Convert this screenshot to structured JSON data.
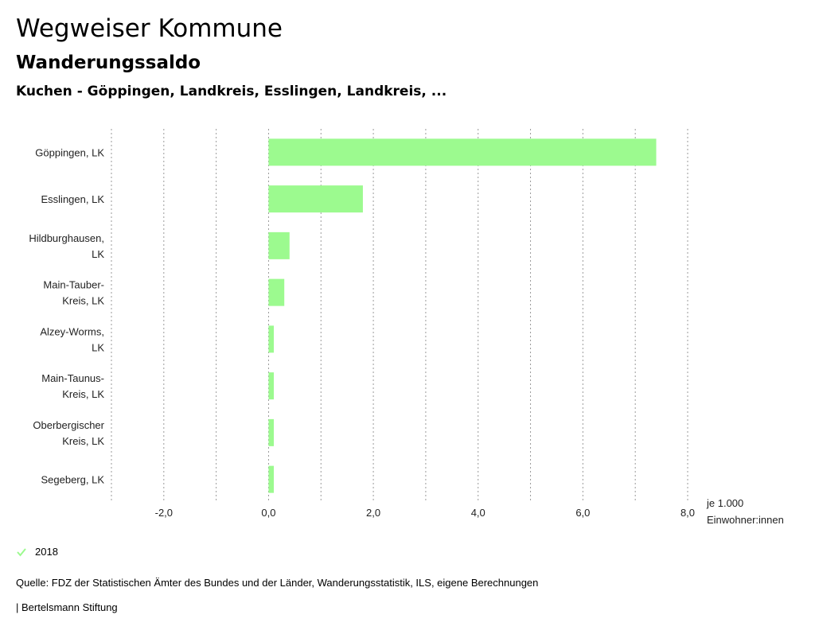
{
  "header": {
    "title": "Wegweiser Kommune",
    "subtitle": "Wanderungssaldo",
    "selection": "Kuchen - Göppingen, Landkreis, Esslingen, Landkreis, ..."
  },
  "chart_data": {
    "type": "bar",
    "orientation": "horizontal",
    "categories": [
      [
        "Göppingen, LK"
      ],
      [
        "Esslingen, LK"
      ],
      [
        "Hildburghausen,",
        "LK"
      ],
      [
        "Main-Tauber-",
        "Kreis, LK"
      ],
      [
        "Alzey-Worms,",
        "LK"
      ],
      [
        "Main-Taunus-",
        "Kreis, LK"
      ],
      [
        "Oberbergischer",
        "Kreis, LK"
      ],
      [
        "Segeberg, LK"
      ]
    ],
    "series": [
      {
        "name": "2018",
        "color": "#9cfa8f",
        "values": [
          7.4,
          1.8,
          0.4,
          0.3,
          0.1,
          0.1,
          0.1,
          0.1
        ]
      }
    ],
    "xlim": [
      -3.0,
      8.0
    ],
    "xticks": [
      -2.0,
      0.0,
      2.0,
      4.0,
      6.0,
      8.0
    ],
    "xtick_labels": [
      "-2,0",
      "0,0",
      "2,0",
      "4,0",
      "6,0",
      "8,0"
    ],
    "gridlines": [
      -3.0,
      -2.0,
      -1.0,
      0.0,
      1.0,
      2.0,
      3.0,
      4.0,
      5.0,
      6.0,
      7.0,
      8.0
    ],
    "xlabel": [
      "je 1.000",
      "Einwohner:innen"
    ],
    "legend": "bottom-left"
  },
  "legend": {
    "label": "2018",
    "color": "#9cfa8f"
  },
  "footer": {
    "source": "Quelle: FDZ der Statistischen Ämter des Bundes und der Länder, Wanderungsstatistik, ILS, eigene Berechnungen",
    "publisher": "| Bertelsmann Stiftung"
  }
}
